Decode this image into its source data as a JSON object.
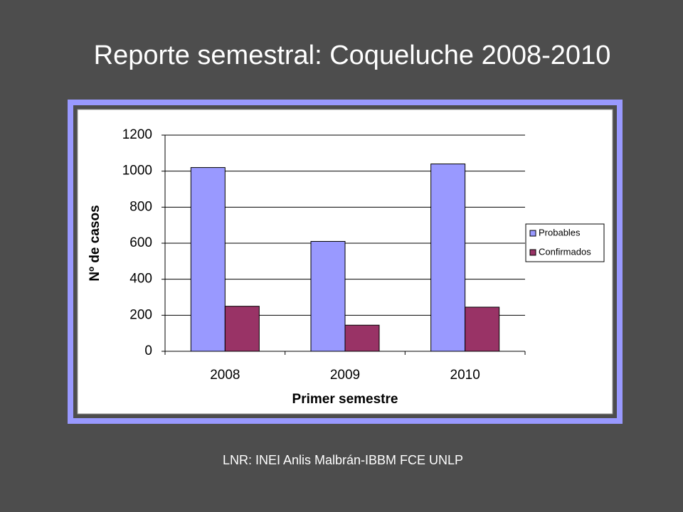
{
  "title": "Reporte semestral: Coqueluche 2008-2010",
  "footer": "LNR: INEI Anlis Malbrán-IBBM FCE UNLP",
  "chart_data": {
    "type": "bar",
    "categories": [
      "2008",
      "2009",
      "2010"
    ],
    "series": [
      {
        "name": "Probables",
        "color": "#9999ff",
        "values": [
          1020,
          610,
          1040
        ]
      },
      {
        "name": "Confirmados",
        "color": "#993366",
        "values": [
          250,
          145,
          245
        ]
      }
    ],
    "xlabel": "Primer semestre",
    "ylabel": "Nº de casos",
    "ylim": [
      0,
      1200
    ],
    "yticks": [
      0,
      200,
      400,
      600,
      800,
      1000,
      1200
    ],
    "grid": true,
    "legend": "right"
  }
}
